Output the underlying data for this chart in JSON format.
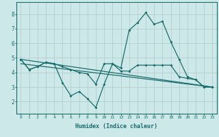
{
  "xlabel": "Humidex (Indice chaleur)",
  "bg_color": "#cce8e8",
  "grid_color": "#b0c8c8",
  "line_color": "#1a6b6b",
  "xlim": [
    -0.5,
    23.5
  ],
  "ylim": [
    1.2,
    8.8
  ],
  "yticks": [
    2,
    3,
    4,
    5,
    6,
    7,
    8
  ],
  "xticks": [
    0,
    1,
    2,
    3,
    4,
    5,
    6,
    7,
    8,
    9,
    10,
    11,
    12,
    13,
    14,
    15,
    16,
    17,
    18,
    19,
    20,
    21,
    22,
    23
  ],
  "series_squiggly": {
    "x": [
      0,
      1,
      2,
      3,
      4,
      5,
      6,
      7,
      8,
      9,
      10,
      11,
      12,
      13,
      14,
      15,
      16,
      17,
      18,
      19,
      20,
      21,
      22,
      23
    ],
    "y": [
      4.9,
      4.2,
      4.4,
      4.7,
      4.6,
      3.3,
      2.4,
      2.7,
      2.2,
      1.6,
      3.2,
      4.6,
      4.1,
      4.1,
      4.5,
      4.5,
      4.5,
      4.5,
      4.5,
      3.7,
      3.6,
      3.5,
      3.0,
      3.0
    ]
  },
  "series_hump": {
    "x": [
      0,
      1,
      2,
      3,
      4,
      5,
      6,
      7,
      8,
      9,
      10,
      11,
      12,
      13,
      14,
      15,
      16,
      17,
      18,
      19,
      20,
      21,
      22,
      23
    ],
    "y": [
      4.9,
      4.2,
      4.4,
      4.7,
      4.6,
      4.4,
      4.2,
      4.0,
      3.9,
      3.2,
      4.6,
      4.6,
      4.3,
      6.9,
      7.4,
      8.1,
      7.3,
      7.5,
      6.1,
      4.9,
      3.7,
      3.5,
      3.0,
      3.0
    ]
  },
  "series_line1": {
    "x": [
      0,
      23
    ],
    "y": [
      4.9,
      3.0
    ]
  },
  "series_line2": {
    "x": [
      0,
      23
    ],
    "y": [
      4.6,
      3.0
    ]
  }
}
